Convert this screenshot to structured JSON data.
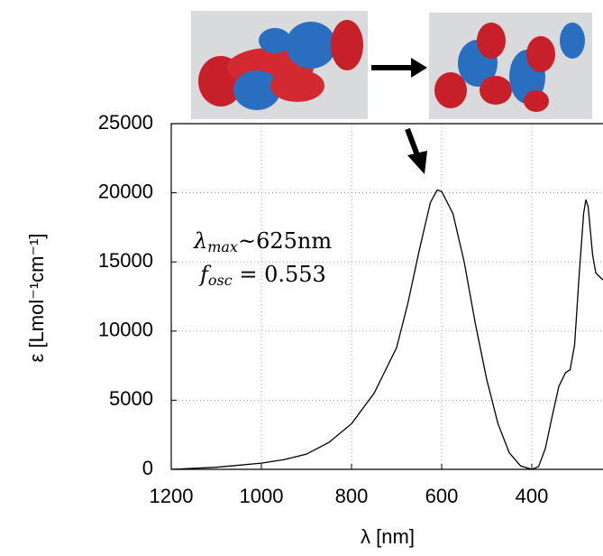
{
  "chart_data": {
    "type": "line",
    "x": [
      1200,
      1100,
      1000,
      950,
      900,
      850,
      800,
      750,
      700,
      675,
      650,
      625,
      610,
      600,
      575,
      550,
      525,
      500,
      475,
      450,
      425,
      400,
      385,
      370,
      355,
      340,
      325,
      315,
      305,
      295,
      285,
      280,
      275,
      265,
      258,
      242
    ],
    "values": [
      0,
      150,
      450,
      700,
      1100,
      1950,
      3300,
      5500,
      8800,
      12000,
      15800,
      19300,
      20200,
      20100,
      18500,
      15000,
      10500,
      6500,
      3300,
      1200,
      250,
      0,
      200,
      1500,
      3800,
      6000,
      7000,
      7200,
      9000,
      14000,
      18500,
      19500,
      19000,
      15500,
      14200,
      13700
    ],
    "color": "#000000",
    "xlim": [
      1200,
      242
    ],
    "ylim": [
      0,
      25000
    ],
    "xticks": [
      1200,
      1000,
      800,
      600,
      400
    ],
    "yticks": [
      0,
      5000,
      10000,
      15000,
      20000,
      25000
    ],
    "grid": true,
    "xlabel": "λ [nm]",
    "ylabel": "ε [Lmol⁻¹cm⁻¹]",
    "annotations": [
      [
        "λ",
        "max",
        "~625nm"
      ],
      [
        "f",
        "osc",
        " = 0.553"
      ]
    ]
  }
}
